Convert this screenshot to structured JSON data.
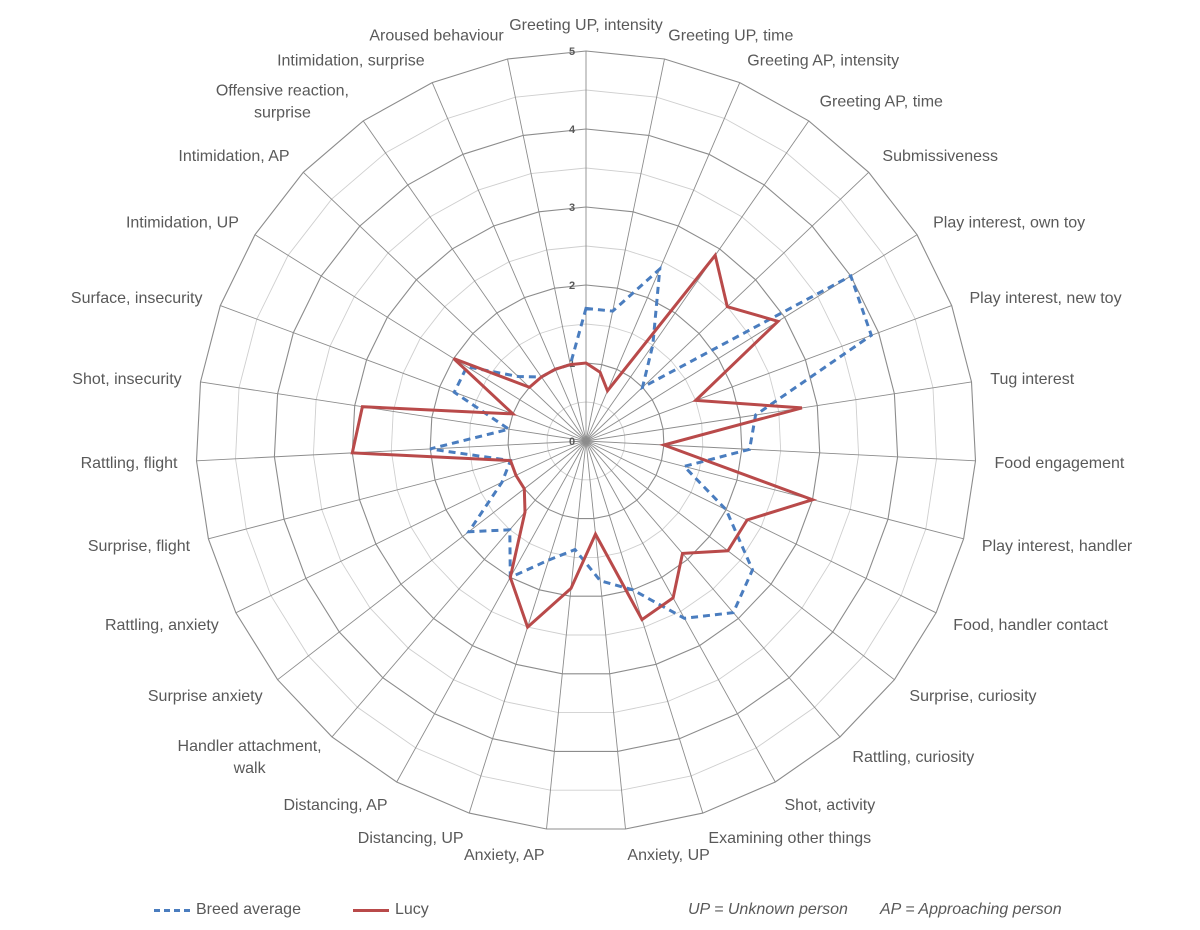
{
  "chart_data": {
    "type": "radar",
    "title": "",
    "r_range": [
      0,
      5
    ],
    "r_ticks": [
      "0",
      "1",
      "2",
      "3",
      "4",
      "5"
    ],
    "grid": true,
    "legend_position": "bottom",
    "categories": [
      "Greeting UP, intensity",
      "Greeting UP, time",
      "Greeting AP, intensity",
      "Greeting AP, time",
      "Submissiveness",
      "Play interest, own toy",
      "Play interest, new toy",
      "Tug interest",
      "Food engagement",
      "Play interest, handler",
      "Food, handler contact",
      "Surprise, curiosity",
      "Rattling, curiosity",
      "Shot, activity",
      "Examining other things",
      "Anxiety, UP",
      "Anxiety, AP",
      "Distancing, UP",
      "Distancing, AP",
      "Handler attachment, walk",
      "Surprise anxiety",
      "Rattling, anxiety",
      "Surprise, flight",
      "Rattling, flight",
      "Shot, insecurity",
      "Surface, insecurity",
      "Intimidation, UP",
      "Intimidation, AP",
      "Offensive reaction, surprise",
      "Intimidation, surprise",
      "Aroused behaviour"
    ],
    "series": [
      {
        "name": "Breed average",
        "color": "#4a7dbf",
        "style": "dashed",
        "values": [
          1.7,
          1.7,
          2.4,
          1.5,
          1.0,
          4.0,
          3.9,
          2.2,
          2.1,
          1.3,
          2.0,
          2.7,
          2.9,
          2.6,
          2.0,
          1.8,
          1.4,
          1.6,
          2.0,
          1.5,
          1.9,
          1.2,
          1.0,
          2.0,
          1.0,
          1.8,
          1.8,
          1.2,
          1.0,
          1.0,
          1.0
        ]
      },
      {
        "name": "Lucy",
        "color": "#b94a4a",
        "style": "solid",
        "values": [
          1.0,
          0.9,
          0.7,
          2.9,
          2.5,
          2.9,
          1.5,
          2.8,
          1.0,
          3.0,
          2.3,
          2.3,
          1.9,
          2.3,
          2.4,
          1.2,
          1.9,
          2.5,
          2.0,
          1.2,
          1.0,
          1.0,
          1.0,
          3.0,
          2.9,
          1.0,
          2.0,
          1.0,
          1.0,
          1.0,
          1.0
        ]
      }
    ]
  },
  "notes": {
    "up": "UP = Unknown person",
    "ap": "AP = Approaching person"
  }
}
